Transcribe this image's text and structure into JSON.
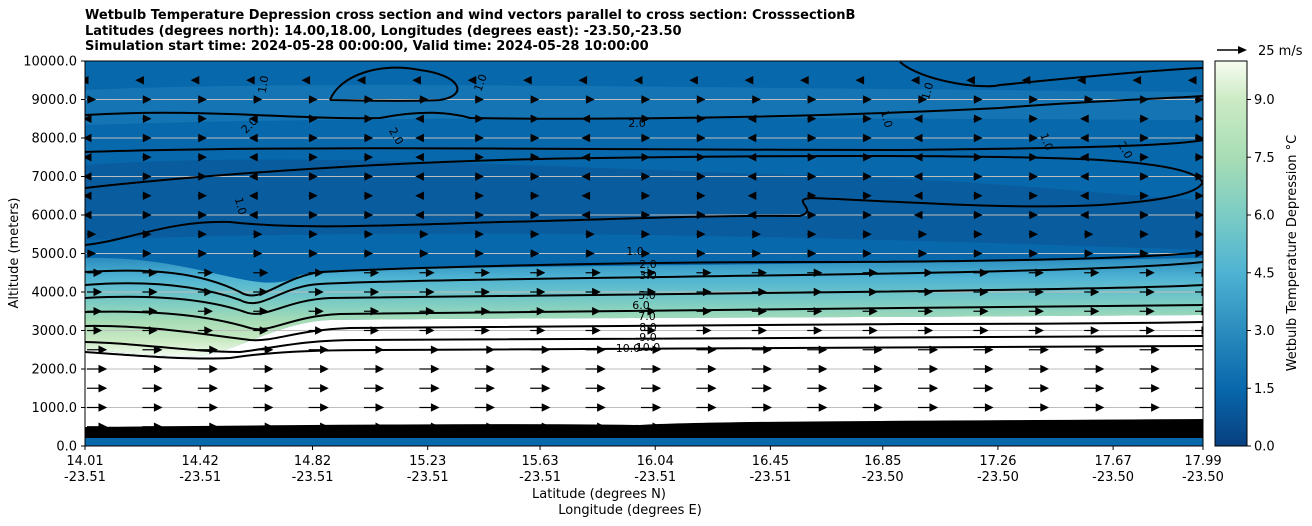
{
  "chart_data": {
    "type": "heatmap",
    "title_lines": [
      "Wetbulb Temperature Depression cross section and wind vectors parallel to cross section: CrosssectionB",
      "Latitudes (degrees north): 14.00,18.00, Longitudes (degrees east): -23.50,-23.50",
      "Simulation start time: 2024-05-28 00:00:00, Valid time: 2024-05-28 10:00:00"
    ],
    "ylabel": "Altitude (meters)",
    "xlabel": "Latitude (degrees N)",
    "xlabel2": "Longitude (degrees E)",
    "ylim": [
      0,
      10000
    ],
    "yticks": [
      "0.0",
      "1000.0",
      "2000.0",
      "3000.0",
      "4000.0",
      "5000.0",
      "6000.0",
      "7000.0",
      "8000.0",
      "9000.0",
      "10000.0"
    ],
    "x_ticks": [
      {
        "lat": "14.01",
        "lon": "-23.51"
      },
      {
        "lat": "14.42",
        "lon": "-23.51"
      },
      {
        "lat": "14.82",
        "lon": "-23.51"
      },
      {
        "lat": "15.23",
        "lon": "-23.51"
      },
      {
        "lat": "15.63",
        "lon": "-23.51"
      },
      {
        "lat": "16.04",
        "lon": "-23.51"
      },
      {
        "lat": "16.45",
        "lon": "-23.51"
      },
      {
        "lat": "16.85",
        "lon": "-23.50"
      },
      {
        "lat": "17.26",
        "lon": "-23.50"
      },
      {
        "lat": "17.67",
        "lon": "-23.50"
      },
      {
        "lat": "17.99",
        "lon": "-23.50"
      }
    ],
    "grid": "horizontal",
    "colorbar": {
      "label": "Wetbulb Temperature Depression °C",
      "range": [
        0,
        10
      ],
      "ticks": [
        "0.0",
        "1.5",
        "3.0",
        "4.5",
        "6.0",
        "7.5",
        "9.0"
      ],
      "colormap": "GnBu (reversed)"
    },
    "contour_levels": [
      "1.0",
      "2.0",
      "3.0",
      "5.0",
      "6.0",
      "7.0",
      "8.0",
      "9.0",
      "10.0"
    ],
    "wind_key": {
      "label": "25 m/s"
    },
    "layers": [
      {
        "alt_range": [
          0,
          450
        ],
        "depression": "0-2, sharp gradient near surface"
      },
      {
        "alt_range": [
          450,
          2400
        ],
        "depression": ">10 (dry layer, white)"
      },
      {
        "alt_range": [
          2400,
          4500
        ],
        "depression": "10 decreasing to 3 (moist gradient)"
      },
      {
        "alt_range": [
          4500,
          10000
        ],
        "depression": "0-2.5 (near saturated)"
      }
    ]
  }
}
